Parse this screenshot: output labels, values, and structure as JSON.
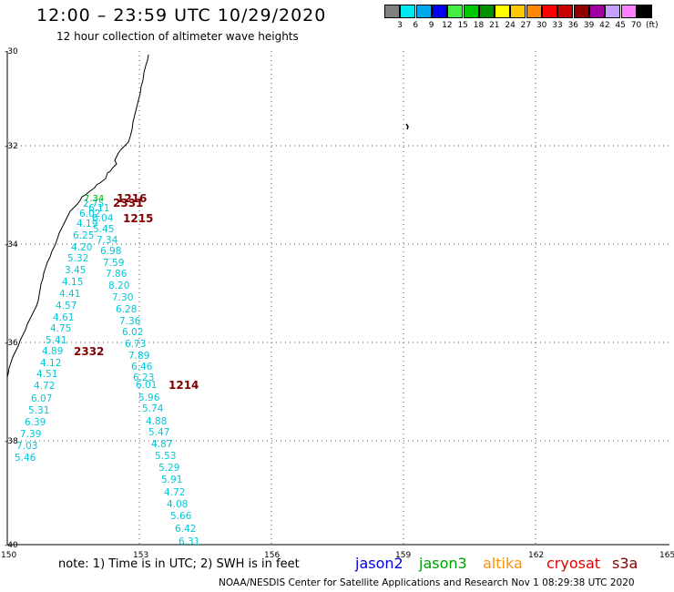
{
  "header": {
    "title": "12:00 – 23:59 UTC 10/29/2020",
    "subtitle": "12 hour collection of altimeter wave heights"
  },
  "color_scale": {
    "swatches": [
      "#808080",
      "#00e8f0",
      "#00a8f0",
      "#0000f0",
      "#44ee44",
      "#00c800",
      "#009000",
      "#ffff00",
      "#ffc800",
      "#ff8800",
      "#ff0000",
      "#c80000",
      "#900000",
      "#a000a0",
      "#c8a0ff",
      "#ff80ff",
      "#000000"
    ],
    "labels": [
      "3",
      "6",
      "9",
      "12",
      "15",
      "18",
      "21",
      "24",
      "27",
      "30",
      "33",
      "36",
      "39",
      "42",
      "45",
      "70",
      "(ft)"
    ]
  },
  "axes": {
    "lon_labels": [
      "150",
      "153",
      "156",
      "159",
      "162",
      "165"
    ],
    "lat_labels": [
      "-30",
      "-32",
      "-34",
      "-36",
      "-38",
      "-40"
    ]
  },
  "track_cyan": {
    "color": "#00c8d8",
    "west": [
      "6.02",
      "4.19",
      "6.25",
      "4.20",
      "5.32",
      "3.45",
      "4.15",
      "4.41",
      "4.57",
      "4.61",
      "4.75",
      "5.41",
      "4.89",
      "4.12",
      "4.51",
      "4.72",
      "6.07",
      "5.31",
      "6.39",
      "7.39",
      "7.03",
      "5.46"
    ],
    "east": [
      "2.75",
      "6.11",
      "6.04",
      "5.45",
      "7.34",
      "6.98",
      "7.59",
      "7.86",
      "8.20",
      "7.30",
      "6.28",
      "7.36",
      "6.02",
      "6.73",
      "7.89",
      "6.46",
      "6.23",
      "6.01",
      "5.96",
      "5.74",
      "4.88",
      "5.47",
      "4.87",
      "5.53",
      "5.29",
      "5.91",
      "4.72",
      "4.08",
      "5.66",
      "6.42",
      "6.31"
    ]
  },
  "track_green": {
    "color": "#00b000",
    "values": [
      "7.34"
    ]
  },
  "time_labels": {
    "color": "#800000",
    "items": [
      "1216",
      "2331",
      "1215",
      "2332",
      "1214"
    ]
  },
  "footer": {
    "note": "note:  1) Time is in UTC;  2) SWH is in feet",
    "credit": "NOAA/NESDIS Center for Satellite Applications and Research    Nov  1 08:29:38 UTC 2020",
    "satellites": [
      {
        "name": "jason2",
        "color": "#0000e0"
      },
      {
        "name": "jason3",
        "color": "#00a000"
      },
      {
        "name": "altika",
        "color": "#ff9000"
      },
      {
        "name": "cryosat",
        "color": "#e00000"
      },
      {
        "name": "s3a",
        "color": "#800000"
      }
    ]
  }
}
